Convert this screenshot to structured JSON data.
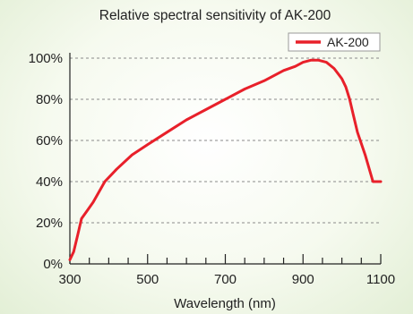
{
  "chart_data": {
    "type": "line",
    "title": "Relative spectral sensitivity of AK-200",
    "xlabel": "Wavelength (nm)",
    "ylabel": "",
    "xlim": [
      300,
      1100
    ],
    "ylim": [
      0,
      100
    ],
    "x_ticks": [
      300,
      500,
      700,
      900,
      1100
    ],
    "y_ticks": [
      0,
      20,
      40,
      60,
      80,
      100
    ],
    "y_tick_labels": [
      "0%",
      "20%",
      "40%",
      "60%",
      "80%",
      "100%"
    ],
    "grid": "horizontal dashed",
    "legend_position": "top-right",
    "series": [
      {
        "name": "AK-200",
        "color": "#e8202a",
        "x": [
          300,
          310,
          320,
          330,
          345,
          360,
          375,
          390,
          420,
          460,
          500,
          550,
          600,
          650,
          700,
          750,
          800,
          850,
          880,
          900,
          920,
          940,
          960,
          980,
          1000,
          1010,
          1020,
          1030,
          1040,
          1060,
          1080,
          1100
        ],
        "y": [
          2,
          6,
          14,
          22,
          26,
          30,
          35,
          40,
          46,
          53,
          58,
          64,
          70,
          75,
          80,
          85,
          89,
          94,
          96,
          98,
          99,
          99,
          98,
          95,
          90,
          86,
          80,
          72,
          64,
          53,
          40,
          40
        ]
      }
    ]
  }
}
